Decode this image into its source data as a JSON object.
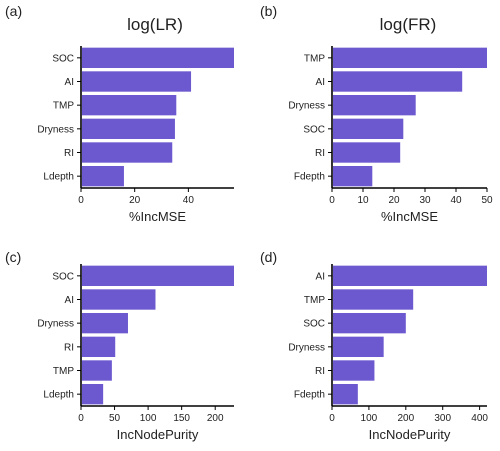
{
  "bar_color": "#6C59D0",
  "chart_data": [
    {
      "type": "bar",
      "orientation": "horizontal",
      "panel_label": "(a)",
      "title": "log(LR)",
      "xlabel": "%IncMSE",
      "categories": [
        "SOC",
        "AI",
        "TMP",
        "Dryness",
        "RI",
        "Ldepth"
      ],
      "values": [
        57,
        41,
        35.5,
        35,
        34,
        16
      ],
      "xticks": [
        0,
        20,
        40
      ],
      "xlim": [
        0,
        57
      ]
    },
    {
      "type": "bar",
      "orientation": "horizontal",
      "panel_label": "(b)",
      "title": "log(FR)",
      "xlabel": "%IncMSE",
      "categories": [
        "TMP",
        "AI",
        "Dryness",
        "SOC",
        "RI",
        "Fdepth"
      ],
      "values": [
        50,
        42,
        27,
        23,
        22,
        13
      ],
      "xticks": [
        0,
        10,
        20,
        30,
        40,
        50
      ],
      "xlim": [
        0,
        50
      ]
    },
    {
      "type": "bar",
      "orientation": "horizontal",
      "panel_label": "(c)",
      "title": "",
      "xlabel": "IncNodePurity",
      "categories": [
        "SOC",
        "AI",
        "Dryness",
        "RI",
        "TMP",
        "Ldepth"
      ],
      "values": [
        228,
        111,
        70,
        51,
        46,
        33
      ],
      "xticks": [
        0,
        50,
        100,
        150,
        200
      ],
      "xlim": [
        0,
        228
      ]
    },
    {
      "type": "bar",
      "orientation": "horizontal",
      "panel_label": "(d)",
      "title": "",
      "xlabel": "IncNodePurity",
      "categories": [
        "AI",
        "TMP",
        "SOC",
        "Dryness",
        "RI",
        "Fdepth"
      ],
      "values": [
        420,
        220,
        200,
        140,
        115,
        70
      ],
      "xticks": [
        0,
        100,
        200,
        300,
        400
      ],
      "xlim": [
        0,
        420
      ]
    }
  ]
}
